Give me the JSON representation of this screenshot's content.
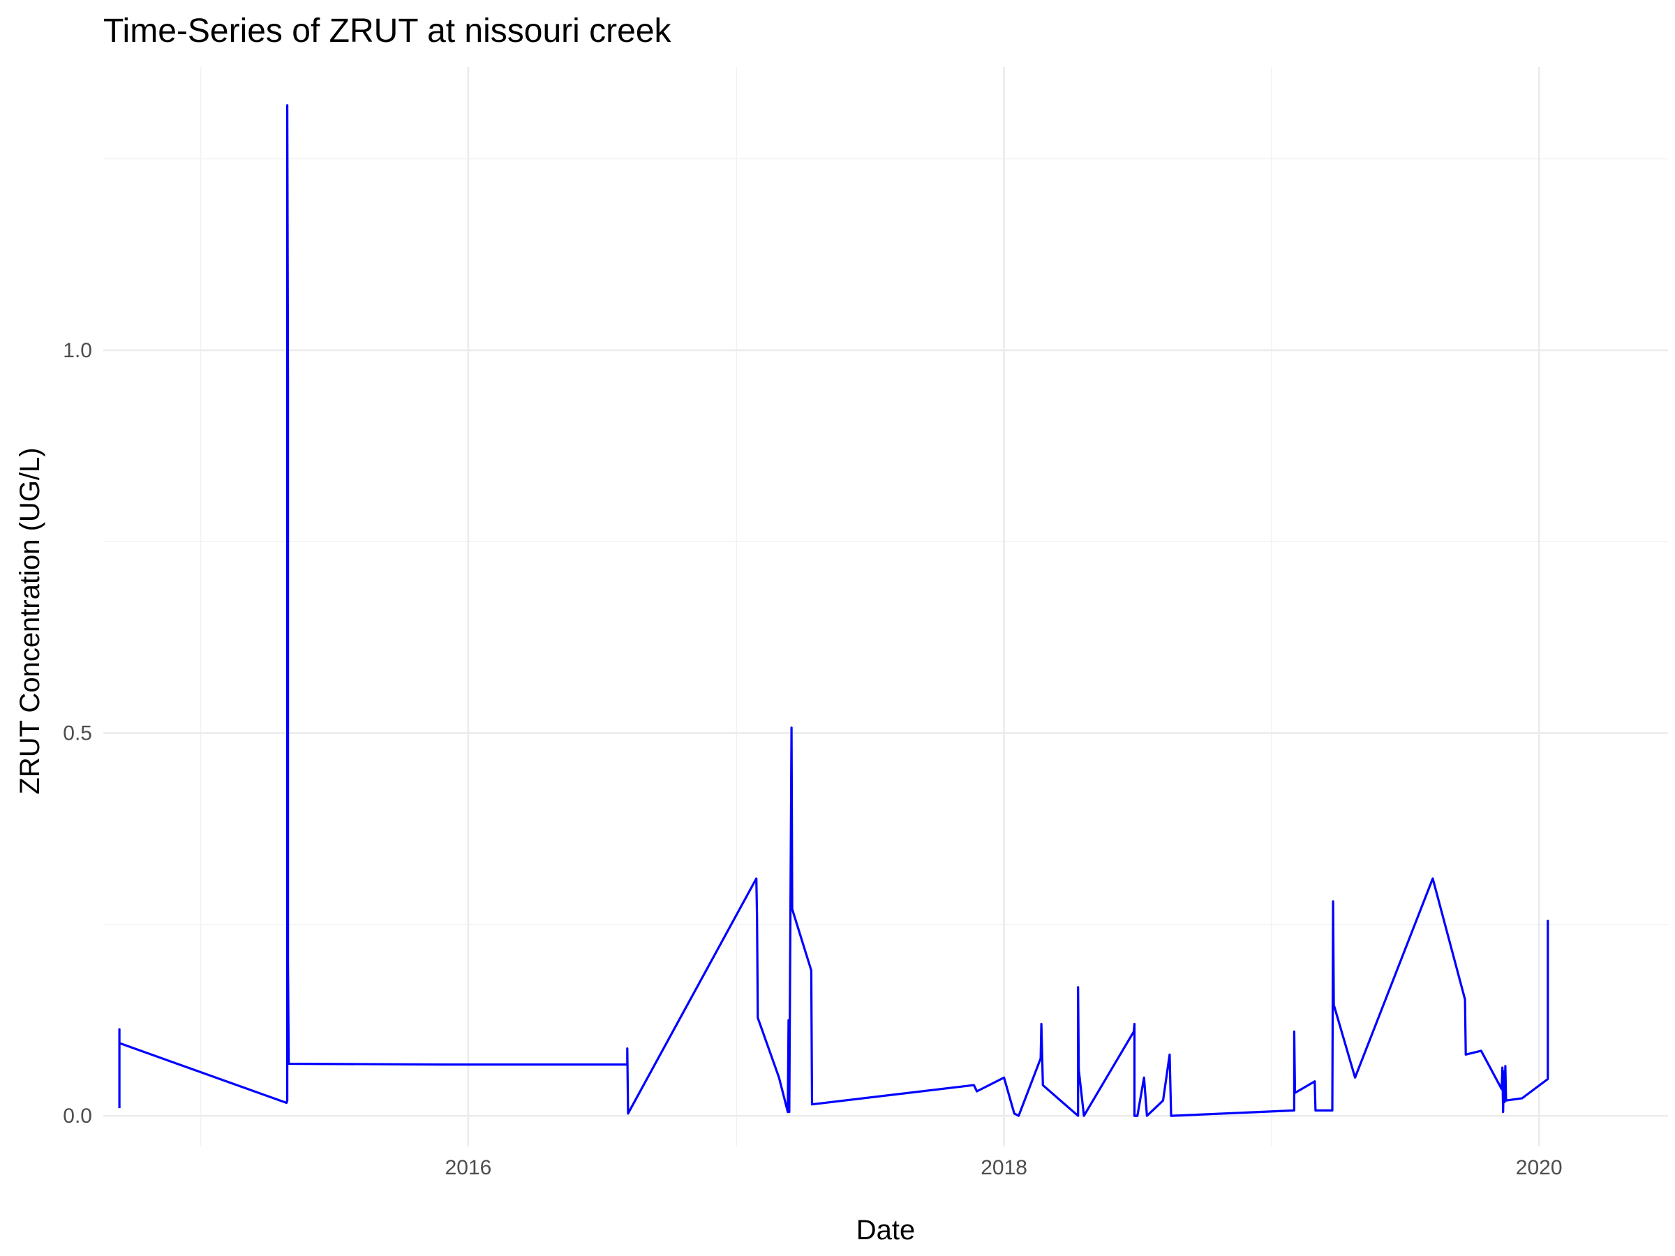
{
  "chart_data": {
    "type": "line",
    "title": "Time-Series of ZRUT at nissouri creek",
    "xlabel": "Date",
    "ylabel": "ZRUT Concentration (UG/L)",
    "x_ticks": [
      "2016",
      "2018",
      "2020"
    ],
    "y_ticks": [
      "0.0",
      "0.5",
      "1.0"
    ],
    "xlim": [
      "2014-08-21",
      "2020-06-25"
    ],
    "ylim": [
      -0.04,
      1.37
    ],
    "grid": true,
    "legend": "none",
    "line_color": "#0000ff",
    "series": [
      {
        "points": [
          [
            "2014-09-12",
            0.01
          ],
          [
            "2014-09-12",
            0.113
          ],
          [
            "2014-09-12",
            0.095
          ],
          [
            "2015-04-28",
            0.017
          ],
          [
            "2015-04-29",
            0.02
          ],
          [
            "2015-04-29",
            1.32
          ],
          [
            "2015-04-30",
            0.96
          ],
          [
            "2015-04-30",
            0.2
          ],
          [
            "2015-05-01",
            0.068
          ],
          [
            "2015-12-01",
            0.067
          ],
          [
            "2016-08-05",
            0.067
          ],
          [
            "2016-08-05",
            0.088
          ],
          [
            "2016-08-06",
            0.003
          ],
          [
            "2017-01-28",
            0.31
          ],
          [
            "2017-01-29",
            0.26
          ],
          [
            "2017-01-30",
            0.128
          ],
          [
            "2017-02-28",
            0.05
          ],
          [
            "2017-03-12",
            0.005
          ],
          [
            "2017-03-13",
            0.125
          ],
          [
            "2017-03-14",
            0.005
          ],
          [
            "2017-03-17",
            0.507
          ],
          [
            "2017-03-18",
            0.27
          ],
          [
            "2017-04-13",
            0.19
          ],
          [
            "2017-04-14",
            0.015
          ],
          [
            "2017-11-20",
            0.04
          ],
          [
            "2017-11-21",
            0.04
          ],
          [
            "2017-11-25",
            0.032
          ],
          [
            "2018-01-01",
            0.05
          ],
          [
            "2018-01-15",
            0.003
          ],
          [
            "2018-01-21",
            0.0
          ],
          [
            "2018-02-20",
            0.075
          ],
          [
            "2018-02-21",
            0.12
          ],
          [
            "2018-02-23",
            0.04
          ],
          [
            "2018-04-12",
            0.0
          ],
          [
            "2018-04-12",
            0.168
          ],
          [
            "2018-04-13",
            0.06
          ],
          [
            "2018-04-20",
            0.0
          ],
          [
            "2018-06-27",
            0.11
          ],
          [
            "2018-06-28",
            0.12
          ],
          [
            "2018-06-28",
            0.0
          ],
          [
            "2018-07-02",
            0.0
          ],
          [
            "2018-07-11",
            0.05
          ],
          [
            "2018-07-15",
            0.0
          ],
          [
            "2018-08-06",
            0.02
          ],
          [
            "2018-08-15",
            0.08
          ],
          [
            "2018-08-17",
            0.0
          ],
          [
            "2019-02-01",
            0.007
          ],
          [
            "2019-02-01",
            0.11
          ],
          [
            "2019-02-02",
            0.03
          ],
          [
            "2019-03-01",
            0.045
          ],
          [
            "2019-03-02",
            0.007
          ],
          [
            "2019-03-25",
            0.007
          ],
          [
            "2019-03-26",
            0.28
          ],
          [
            "2019-03-27",
            0.145
          ],
          [
            "2019-04-25",
            0.05
          ],
          [
            "2019-08-09",
            0.31
          ],
          [
            "2019-09-22",
            0.152
          ],
          [
            "2019-09-23",
            0.08
          ],
          [
            "2019-10-14",
            0.085
          ],
          [
            "2019-11-11",
            0.035
          ],
          [
            "2019-11-12",
            0.063
          ],
          [
            "2019-11-13",
            0.005
          ],
          [
            "2019-11-14",
            0.058
          ],
          [
            "2019-11-15",
            0.018
          ],
          [
            "2019-11-16",
            0.065
          ],
          [
            "2019-11-17",
            0.02
          ],
          [
            "2019-12-09",
            0.023
          ],
          [
            "2020-01-13",
            0.048
          ],
          [
            "2020-01-13",
            0.256
          ]
        ]
      }
    ]
  }
}
